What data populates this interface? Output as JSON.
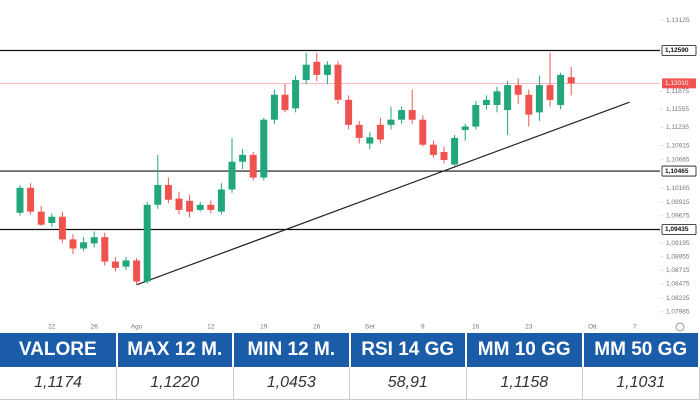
{
  "chart_data": {
    "type": "candlestick",
    "categories": [
      null,
      null,
      null,
      "22",
      null,
      null,
      null,
      "26",
      null,
      null,
      null,
      "Ago",
      null,
      null,
      null,
      null,
      null,
      null,
      "12",
      null,
      null,
      null,
      null,
      "19",
      null,
      null,
      null,
      null,
      "26",
      null,
      null,
      null,
      null,
      "Set",
      null,
      null,
      null,
      null,
      "9",
      null,
      null,
      null,
      null,
      "16",
      null,
      null,
      null,
      null,
      "23",
      null,
      null,
      null,
      null,
      null,
      "Ott",
      null,
      null,
      null,
      "7"
    ],
    "open": [
      1.0973,
      1.1017,
      1.0975,
      1.0955,
      1.0966,
      1.0926,
      1.091,
      1.0919,
      1.093,
      1.0887,
      1.0878,
      1.0889,
      1.0852,
      1.0987,
      1.1022,
      1.0998,
      1.0994,
      1.0978,
      1.0987,
      1.0975,
      1.1014,
      1.1063,
      1.1075,
      1.1035,
      1.1137,
      1.1181,
      1.1157,
      1.1207,
      1.1239,
      1.1216,
      1.1234,
      1.1172,
      1.1128,
      1.1095,
      1.1128,
      1.1128,
      1.1137,
      1.1154,
      1.1137,
      1.1093,
      1.108,
      1.1058,
      1.1119,
      1.1125,
      1.1163,
      1.1163,
      1.1154,
      1.1198,
      1.1181,
      1.115,
      1.1198,
      1.1163,
      1.1212,
      null,
      null,
      null,
      null,
      null,
      null
    ],
    "high": [
      1.1022,
      1.1025,
      1.0985,
      1.0972,
      1.0975,
      1.0935,
      1.093,
      1.094,
      1.0938,
      1.0895,
      1.0895,
      1.0893,
      1.0992,
      1.1075,
      1.1035,
      1.101,
      1.1005,
      1.0992,
      1.0995,
      1.1025,
      1.1105,
      1.1085,
      1.108,
      1.114,
      1.119,
      1.12,
      1.1215,
      1.1255,
      1.1255,
      1.124,
      1.124,
      1.118,
      1.1135,
      1.1115,
      1.114,
      1.116,
      1.116,
      1.119,
      1.1145,
      1.11,
      1.109,
      1.111,
      1.113,
      1.117,
      1.118,
      1.1195,
      1.1205,
      1.121,
      1.119,
      1.1215,
      1.1255,
      1.122,
      1.123,
      null,
      null,
      null,
      null,
      null,
      null
    ],
    "low": [
      1.0968,
      1.097,
      1.095,
      1.0948,
      1.092,
      1.09,
      1.0905,
      1.0912,
      1.088,
      1.087,
      1.0872,
      1.0846,
      1.0848,
      1.098,
      1.099,
      1.097,
      1.0965,
      1.0975,
      1.0972,
      1.097,
      1.1008,
      1.105,
      1.103,
      1.103,
      1.113,
      1.115,
      1.115,
      1.12,
      1.1205,
      1.12,
      1.1165,
      1.112,
      1.1095,
      1.1085,
      1.1095,
      1.112,
      1.113,
      1.113,
      1.109,
      1.107,
      1.106,
      1.1055,
      1.11,
      1.112,
      1.1155,
      1.115,
      1.111,
      1.1165,
      1.1125,
      1.1135,
      1.116,
      1.1155,
      1.118,
      null,
      null,
      null,
      null,
      null,
      null
    ],
    "close": [
      1.1017,
      1.0975,
      1.0952,
      1.0966,
      1.0926,
      1.091,
      1.0921,
      1.093,
      1.0887,
      1.0876,
      1.0889,
      1.0852,
      1.0987,
      1.1022,
      1.0996,
      1.0978,
      1.0975,
      1.0987,
      1.0978,
      1.1014,
      1.1063,
      1.1075,
      1.1035,
      1.1137,
      1.1181,
      1.1154,
      1.1207,
      1.1234,
      1.1216,
      1.1234,
      1.1172,
      1.1128,
      1.1105,
      1.1106,
      1.1102,
      1.1137,
      1.1154,
      1.1137,
      1.1093,
      1.1075,
      1.1066,
      1.1105,
      1.1125,
      1.1163,
      1.1172,
      1.1187,
      1.1198,
      1.1181,
      1.1146,
      1.1198,
      1.1172,
      1.1216,
      1.1201,
      null,
      null,
      null,
      null,
      null,
      null
    ],
    "up_color": "#22a67c",
    "down_color": "#ef5350",
    "ylim": [
      1.0784,
      1.1348
    ],
    "yticks": [
      {
        "value": 1.13125,
        "label": "1,13125"
      },
      {
        "value": 1.11875,
        "label": "1,11875"
      },
      {
        "value": 1.11555,
        "label": "1,11555"
      },
      {
        "value": 1.11235,
        "label": "1,11235"
      },
      {
        "value": 1.10915,
        "label": "1,10915"
      },
      {
        "value": 1.10665,
        "label": "1,10665"
      },
      {
        "value": 1.10165,
        "label": "1,10165"
      },
      {
        "value": 1.09915,
        "label": "1,09915"
      },
      {
        "value": 1.09675,
        "label": "1,09675"
      },
      {
        "value": 1.09195,
        "label": "1,09195"
      },
      {
        "value": 1.08955,
        "label": "1,08955"
      },
      {
        "value": 1.08715,
        "label": "1,08715"
      },
      {
        "value": 1.08475,
        "label": "1,08475"
      },
      {
        "value": 1.08225,
        "label": "1,08225"
      },
      {
        "value": 1.07985,
        "label": "1,07985"
      }
    ],
    "levels": [
      {
        "value": 1.1259,
        "label": "1,12590"
      },
      {
        "value": 1.10465,
        "label": "1,10465"
      },
      {
        "value": 1.09435,
        "label": "1,09435"
      }
    ],
    "last_price": {
      "value": 1.1201,
      "label": "1,12010"
    },
    "trendline": {
      "x": [
        11,
        57.5
      ],
      "y": [
        1.0846,
        1.1168
      ]
    },
    "grid": false
  },
  "table": {
    "header": [
      "VALORE",
      "MAX 12 M.",
      "MIN 12 M.",
      "RSI 14 GG",
      "MM 10 GG",
      "MM 50 GG"
    ],
    "rows": [
      [
        "1,1174",
        "1,1220",
        "1,0453",
        "58,91",
        "1,1158",
        "1,1031"
      ]
    ]
  }
}
